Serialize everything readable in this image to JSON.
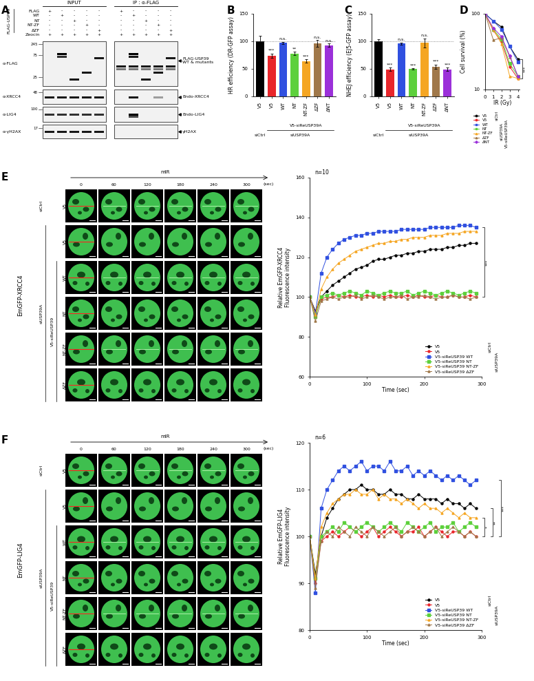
{
  "panel_letters": [
    "A",
    "B",
    "C",
    "D",
    "E",
    "F"
  ],
  "blot": {
    "groups": [
      "INPUT",
      "IP : α-FLAG"
    ],
    "construct": "FLAG-USP39",
    "rows": [
      {
        "label": "FLAG",
        "marks": [
          "+",
          "-",
          "-",
          "-",
          "-",
          "+",
          "-",
          "-",
          "-",
          "-"
        ]
      },
      {
        "label": "WT",
        "marks": [
          "-",
          "+",
          "-",
          "-",
          "-",
          "-",
          "+",
          "-",
          "-",
          "-"
        ]
      },
      {
        "label": "NT",
        "marks": [
          "-",
          "-",
          "+",
          "-",
          "-",
          "-",
          "-",
          "+",
          "-",
          "-"
        ]
      },
      {
        "label": "NT-ZF",
        "marks": [
          "-",
          "-",
          "-",
          "+",
          "-",
          "-",
          "-",
          "-",
          "+",
          "-"
        ]
      },
      {
        "label": "ΔZF",
        "marks": [
          "-",
          "-",
          "-",
          "-",
          "+",
          "-",
          "-",
          "-",
          "-",
          "+"
        ]
      },
      {
        "label": "Zeocin",
        "marks": [
          "+",
          "+",
          "+",
          "+",
          "+",
          "+",
          "+",
          "+",
          "+",
          "+"
        ]
      }
    ],
    "blots": [
      {
        "antibody": "α-FLAG",
        "markers": [
          245,
          75,
          25
        ],
        "right_label": "FLAG-USP39\nWT & mutants"
      },
      {
        "antibody": "α-XRCC4",
        "markers": [
          48
        ],
        "right_label": "Endo-XRCC4"
      },
      {
        "antibody": "α-LIG4",
        "markers": [
          100
        ],
        "right_label": "Endo-LIG4"
      },
      {
        "antibody": "α-γH2AX",
        "markers": [
          17
        ],
        "right_label": "γH2AX"
      }
    ]
  },
  "images": [
    {
      "stimulus": "mIR",
      "times": [
        0,
        60,
        120,
        180,
        240,
        300
      ],
      "time_unit": "(sec)",
      "reporter": "EmGFP-XRCC4",
      "rows": [
        "V5",
        "V5",
        "WT",
        "NT",
        "NT-ZF",
        "ΔZF"
      ],
      "groups": [
        "siCtrl",
        "siUSP39A",
        "V5-siReUSP39"
      ]
    },
    {
      "stimulus": "mIR",
      "times": [
        0,
        60,
        120,
        180,
        240,
        300
      ],
      "time_unit": "(sec)",
      "reporter": "EmGFP-LIG4",
      "rows": [
        "V5",
        "V5",
        "WT",
        "NT",
        "NT-ZF",
        "ΔZF"
      ],
      "groups": [
        "siCtrl",
        "siUSP39A",
        "V5-siReUSP39"
      ]
    }
  ],
  "chart_data": [
    {
      "type": "bar",
      "ylabel": "HR efficiency (DR-GFP assay)",
      "categories": [
        "V5",
        "V5",
        "WT",
        "NT",
        "NT-ZF",
        "ΔZF",
        "ΔNT"
      ],
      "values": [
        100,
        74,
        97,
        78,
        64,
        96,
        93
      ],
      "errors": [
        10,
        4,
        2,
        3,
        3,
        6,
        3
      ],
      "colors": [
        "#000000",
        "#e8262b",
        "#3050e0",
        "#5dd03c",
        "#f5a623",
        "#a0784a",
        "#9b30d9"
      ],
      "significance": [
        null,
        "***",
        "n.s.",
        "**",
        "***",
        "n.s.",
        "n.s."
      ],
      "groups": [
        "siCtrl",
        "siUSP39A",
        "V5-siReUSP39A"
      ],
      "reference_line": 100,
      "ylim": [
        0,
        150
      ],
      "yticks": [
        0,
        50,
        100,
        150
      ]
    },
    {
      "type": "bar",
      "ylabel": "NHEJ efficiency (EJ5-GFP assay)",
      "categories": [
        "V5",
        "V5",
        "WT",
        "NT",
        "NT-ZF",
        "ΔZF",
        "ΔNT"
      ],
      "values": [
        100,
        49,
        96,
        50,
        97,
        54,
        49
      ],
      "errors": [
        4,
        3,
        2,
        1,
        8,
        4,
        3
      ],
      "colors": [
        "#000000",
        "#e8262b",
        "#3050e0",
        "#5dd03c",
        "#f5a623",
        "#a0784a",
        "#9b30d9"
      ],
      "significance": [
        null,
        "***",
        "n.s.",
        "***",
        "n.s.",
        "***",
        "***"
      ],
      "groups": [
        "siCtrl",
        "siUSP39A",
        "V5-siReUSP39A"
      ],
      "reference_line": 100,
      "ylim": [
        0,
        150
      ],
      "yticks": [
        0,
        50,
        100,
        150
      ]
    },
    {
      "type": "line",
      "log": "y",
      "xlabel": "IR (Gy)",
      "ylabel": "Cell survival (%)",
      "x": [
        0,
        1,
        2,
        3,
        4
      ],
      "xlim": [
        0,
        4.2
      ],
      "xticks": [
        0,
        1,
        2,
        3,
        4
      ],
      "ylim": [
        10,
        100
      ],
      "yticks": [
        10,
        100
      ],
      "series": [
        {
          "name": "V5",
          "color": "#000000",
          "marker": "circle",
          "values": [
            100,
            80,
            67,
            37,
            25
          ]
        },
        {
          "name": "V5",
          "color": "#e8262b",
          "marker": "circle",
          "values": [
            100,
            60,
            43,
            20,
            14
          ]
        },
        {
          "name": "WT",
          "color": "#3050e0",
          "marker": "square",
          "values": [
            100,
            80,
            62,
            37,
            23
          ]
        },
        {
          "name": "NT",
          "color": "#5dd03c",
          "marker": "square",
          "values": [
            100,
            62,
            46,
            22,
            15
          ]
        },
        {
          "name": "NT-ZF",
          "color": "#f5a623",
          "marker": "triangle",
          "values": [
            100,
            62,
            40,
            15,
            14
          ]
        },
        {
          "name": "ΔZF",
          "color": "#a0784a",
          "marker": "triangle",
          "values": [
            100,
            45,
            48,
            27,
            15
          ]
        },
        {
          "name": "ΔNT",
          "color": "#9b30d9",
          "marker": "diamond",
          "values": [
            100,
            65,
            50,
            28,
            15
          ]
        }
      ],
      "groups": [
        "siCtrl",
        "siUSP39A",
        "V5-siReUSP39A"
      ],
      "significance": [
        "***"
      ]
    },
    {
      "type": "line",
      "xlabel": "Time (sec)",
      "ylabel": "Relative EmGFP-XRCC4\nFluorescence intensity",
      "n_label": "n=10",
      "legend": "lower right",
      "x": [
        0,
        10,
        20,
        30,
        40,
        50,
        60,
        70,
        80,
        90,
        100,
        110,
        120,
        130,
        140,
        150,
        160,
        170,
        180,
        190,
        200,
        210,
        220,
        230,
        240,
        250,
        260,
        270,
        280,
        290
      ],
      "xlim": [
        0,
        300
      ],
      "xticks": [
        0,
        100,
        200,
        300
      ],
      "ylim": [
        60,
        160
      ],
      "yticks": [
        60,
        80,
        100,
        120,
        140,
        160
      ],
      "series": [
        {
          "name": "V5",
          "color": "#000000",
          "marker": "circle",
          "values": [
            100,
            93,
            100,
            103,
            106,
            108,
            110,
            112,
            114,
            115,
            116,
            118,
            119,
            119,
            120,
            121,
            121,
            122,
            122,
            123,
            123,
            124,
            124,
            124,
            125,
            125,
            126,
            126,
            127,
            127
          ]
        },
        {
          "name": "V5",
          "color": "#e8262b",
          "marker": "circle",
          "values": [
            100,
            92,
            99,
            100,
            100,
            101,
            100,
            101,
            100,
            100,
            101,
            100,
            101,
            100,
            101,
            100,
            100,
            101,
            100,
            101,
            100,
            100,
            101,
            100,
            100,
            101,
            100,
            100,
            101,
            100
          ]
        },
        {
          "name": "V5-siReUSP39 WT",
          "color": "#3050e0",
          "marker": "square",
          "values": [
            100,
            92,
            112,
            120,
            124,
            127,
            129,
            130,
            131,
            131,
            132,
            132,
            133,
            133,
            133,
            133,
            134,
            134,
            134,
            134,
            134,
            135,
            135,
            135,
            135,
            135,
            136,
            136,
            136,
            135
          ]
        },
        {
          "name": "V5-siReUSP39 NT",
          "color": "#5dd03c",
          "marker": "square",
          "values": [
            100,
            90,
            100,
            101,
            102,
            101,
            102,
            103,
            102,
            101,
            103,
            102,
            101,
            102,
            103,
            102,
            102,
            103,
            101,
            102,
            103,
            102,
            101,
            102,
            103,
            102,
            101,
            102,
            103,
            102
          ]
        },
        {
          "name": "V5-siReUSP39 NT-ZF",
          "color": "#f5a623",
          "marker": "triangle",
          "values": [
            100,
            91,
            104,
            110,
            114,
            117,
            119,
            121,
            123,
            124,
            125,
            126,
            127,
            127,
            128,
            128,
            129,
            129,
            130,
            130,
            130,
            131,
            131,
            131,
            132,
            132,
            132,
            133,
            133,
            133
          ]
        },
        {
          "name": "V5-siReUSP39 ΔZF",
          "color": "#a0784a",
          "marker": "triangle",
          "values": [
            100,
            88,
            98,
            99,
            100,
            99,
            100,
            100,
            101,
            99,
            100,
            101,
            100,
            99,
            100,
            100,
            101,
            99,
            100,
            100,
            101,
            100,
            99,
            100,
            100,
            101,
            100,
            100,
            99,
            100
          ]
        }
      ],
      "groups": [
        "siCtrl",
        "siUSP39A"
      ],
      "significance": [
        "***"
      ]
    },
    {
      "type": "line",
      "xlabel": "Time (sec)",
      "ylabel": "Relative EmGFP-LIG4\nFluorescence intensity",
      "n_label": "n=6",
      "legend": "lower right",
      "x": [
        0,
        10,
        20,
        30,
        40,
        50,
        60,
        70,
        80,
        90,
        100,
        110,
        120,
        130,
        140,
        150,
        160,
        170,
        180,
        190,
        200,
        210,
        220,
        230,
        240,
        250,
        260,
        270,
        280,
        290
      ],
      "xlim": [
        0,
        300
      ],
      "xticks": [
        0,
        100,
        200,
        300
      ],
      "ylim": [
        80,
        120
      ],
      "yticks": [
        80,
        90,
        100,
        110,
        120
      ],
      "series": [
        {
          "name": "V5",
          "color": "#000000",
          "marker": "circle",
          "values": [
            100,
            92,
            100,
            104,
            106,
            108,
            109,
            110,
            110,
            111,
            110,
            110,
            109,
            109,
            110,
            109,
            109,
            108,
            108,
            109,
            108,
            108,
            108,
            107,
            108,
            107,
            107,
            106,
            107,
            106
          ]
        },
        {
          "name": "V5",
          "color": "#e8262b",
          "marker": "circle",
          "values": [
            100,
            90,
            99,
            100,
            101,
            100,
            101,
            102,
            101,
            100,
            101,
            102,
            100,
            101,
            102,
            101,
            100,
            101,
            101,
            102,
            100,
            101,
            102,
            101,
            100,
            101,
            101,
            100,
            101,
            100
          ]
        },
        {
          "name": "V5-siReUSP39 WT",
          "color": "#3050e0",
          "marker": "square",
          "values": [
            100,
            88,
            106,
            110,
            112,
            114,
            115,
            114,
            115,
            116,
            114,
            115,
            115,
            114,
            116,
            114,
            114,
            115,
            113,
            114,
            113,
            114,
            113,
            112,
            113,
            112,
            113,
            112,
            111,
            112
          ]
        },
        {
          "name": "V5-siReUSP39 NT",
          "color": "#5dd03c",
          "marker": "square",
          "values": [
            100,
            91,
            100,
            101,
            102,
            101,
            103,
            102,
            101,
            102,
            103,
            102,
            101,
            102,
            103,
            102,
            101,
            103,
            102,
            101,
            102,
            103,
            101,
            102,
            102,
            103,
            101,
            102,
            103,
            102
          ]
        },
        {
          "name": "V5-siReUSP39 NT-ZF",
          "color": "#f5a623",
          "marker": "triangle",
          "values": [
            100,
            91,
            102,
            105,
            107,
            108,
            109,
            109,
            110,
            109,
            109,
            110,
            108,
            109,
            108,
            108,
            107,
            108,
            107,
            106,
            107,
            106,
            106,
            105,
            106,
            105,
            104,
            105,
            104,
            104
          ]
        },
        {
          "name": "V5-siReUSP39 ΔZF",
          "color": "#a0784a",
          "marker": "triangle",
          "values": [
            100,
            89,
            99,
            101,
            100,
            102,
            101,
            100,
            102,
            101,
            100,
            102,
            101,
            100,
            101,
            102,
            100,
            101,
            102,
            101,
            100,
            101,
            102,
            100,
            101,
            102,
            101,
            100,
            101,
            100
          ]
        }
      ],
      "groups": [
        "siCtrl",
        "siUSP39A"
      ],
      "significance": [
        "*",
        "**",
        "***"
      ]
    }
  ]
}
